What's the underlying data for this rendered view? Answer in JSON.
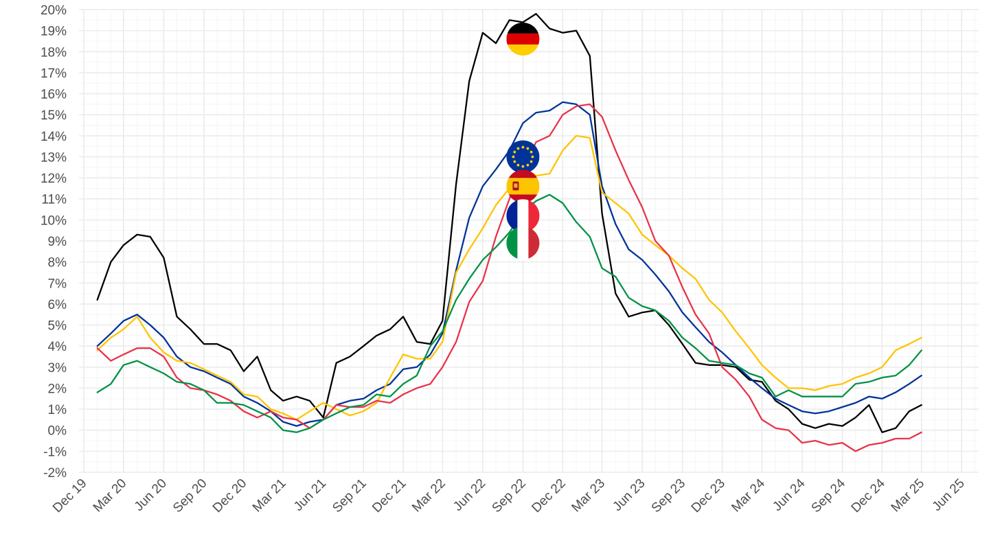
{
  "chart_data": {
    "type": "line",
    "title": "",
    "xlabel": "",
    "ylabel": "",
    "ylim": [
      -2,
      20
    ],
    "y_ticks": [
      -2,
      -1,
      0,
      1,
      2,
      3,
      4,
      5,
      6,
      7,
      8,
      9,
      10,
      11,
      12,
      13,
      14,
      15,
      16,
      17,
      18,
      19,
      20
    ],
    "y_tick_suffix": "%",
    "xlim": [
      "2019-11-20",
      "2025-07-10"
    ],
    "x_tick_dates": [
      "2019-12-01",
      "2020-03-01",
      "2020-06-01",
      "2020-09-01",
      "2020-12-01",
      "2021-03-01",
      "2021-06-01",
      "2021-09-01",
      "2021-12-01",
      "2022-03-01",
      "2022-06-01",
      "2022-09-01",
      "2022-12-01",
      "2023-03-01",
      "2023-06-01",
      "2023-09-01",
      "2023-12-01",
      "2024-03-01",
      "2024-06-01",
      "2024-09-01",
      "2024-12-01",
      "2025-03-01",
      "2025-06-01"
    ],
    "x_tick_labels": [
      "Dec 19",
      "Mar 20",
      "Jun 20",
      "Sep 20",
      "Dec 20",
      "Mar 21",
      "Jun 21",
      "Sep 21",
      "Dec 21",
      "Mar 22",
      "Jun 22",
      "Sep 22",
      "Dec 22",
      "Mar 23",
      "Jun 23",
      "Sep 23",
      "Dec 23",
      "Mar 24",
      "Jun 24",
      "Sep 24",
      "Dec 24",
      "Mar 25",
      "Jun 25"
    ],
    "grid": true,
    "legend": "flag icons on lines near Sep 22",
    "x_start": "2020-01-01",
    "x_step": "month",
    "series": [
      {
        "name": "Germany",
        "color": "#000000",
        "flag": "germany-flag-icon",
        "flag_at": "2022-09-01",
        "flag_value": 18.6,
        "values": [
          6.2,
          8.0,
          8.8,
          9.3,
          9.2,
          8.2,
          5.4,
          4.8,
          4.1,
          4.1,
          3.8,
          2.8,
          3.5,
          1.9,
          1.4,
          1.6,
          1.4,
          0.6,
          3.2,
          3.5,
          4.0,
          4.5,
          4.8,
          5.4,
          4.2,
          4.1,
          5.2,
          11.7,
          16.6,
          18.9,
          18.4,
          19.5,
          19.4,
          19.8,
          19.1,
          18.9,
          19.0,
          17.8,
          10.3,
          6.5,
          5.4,
          5.6,
          5.7,
          5.0,
          4.1,
          3.2,
          3.1,
          3.1,
          3.0,
          2.4,
          2.3,
          1.4,
          1.0,
          0.3,
          0.1,
          0.3,
          0.2,
          0.6,
          1.2,
          -0.1,
          0.1,
          0.9,
          1.2
        ]
      },
      {
        "name": "Euro area",
        "color": "#003399",
        "flag": "eu-flag-icon",
        "flag_at": "2022-09-01",
        "flag_value": 13.0,
        "values": [
          4.0,
          4.6,
          5.2,
          5.5,
          5.0,
          4.4,
          3.5,
          3.0,
          2.8,
          2.5,
          2.2,
          1.6,
          1.3,
          0.9,
          0.4,
          0.2,
          0.4,
          0.5,
          1.2,
          1.4,
          1.5,
          1.9,
          2.2,
          2.9,
          3.0,
          3.6,
          4.6,
          7.6,
          10.1,
          11.6,
          12.4,
          13.3,
          14.6,
          15.1,
          15.2,
          15.6,
          15.5,
          15.0,
          11.6,
          9.8,
          8.6,
          8.1,
          7.4,
          6.6,
          5.6,
          4.9,
          4.2,
          3.7,
          3.1,
          2.5,
          2.0,
          1.5,
          1.2,
          0.9,
          0.8,
          0.9,
          1.1,
          1.3,
          1.6,
          1.5,
          1.8,
          2.2,
          2.6
        ]
      },
      {
        "name": "Spain",
        "color": "#ffc400",
        "flag": "spain-flag-icon",
        "flag_at": "2022-09-01",
        "flag_value": 11.6,
        "values": [
          3.8,
          4.4,
          4.8,
          5.4,
          4.4,
          3.7,
          3.3,
          3.2,
          2.9,
          2.6,
          2.3,
          1.7,
          1.6,
          1.0,
          0.8,
          0.5,
          0.9,
          1.3,
          1.0,
          0.7,
          0.9,
          1.3,
          2.5,
          3.6,
          3.4,
          3.4,
          4.2,
          7.5,
          8.6,
          9.6,
          10.7,
          11.5,
          12.5,
          12.1,
          12.2,
          13.3,
          14.0,
          13.9,
          11.3,
          10.8,
          10.3,
          9.3,
          8.8,
          8.3,
          7.7,
          7.2,
          6.2,
          5.6,
          4.7,
          3.9,
          3.1,
          2.5,
          2.0,
          2.0,
          1.9,
          2.1,
          2.2,
          2.5,
          2.7,
          3.0,
          3.8,
          4.1,
          4.4
        ]
      },
      {
        "name": "France",
        "color": "#e8334a",
        "flag": "france-flag-icon",
        "flag_at": "2022-09-01",
        "flag_value": 10.2,
        "values": [
          3.9,
          3.3,
          3.6,
          3.9,
          3.9,
          3.5,
          2.5,
          2.0,
          1.9,
          1.7,
          1.4,
          0.9,
          0.6,
          0.9,
          0.6,
          0.5,
          0.1,
          0.5,
          1.2,
          1.1,
          1.1,
          1.4,
          1.3,
          1.7,
          2.0,
          2.2,
          3.0,
          4.2,
          6.1,
          7.1,
          9.2,
          11.0,
          12.4,
          13.7,
          14.0,
          15.0,
          15.4,
          15.5,
          14.9,
          13.3,
          11.9,
          10.6,
          9.0,
          8.3,
          6.8,
          5.5,
          4.6,
          3.0,
          2.4,
          1.6,
          0.5,
          0.1,
          0.0,
          -0.6,
          -0.5,
          -0.7,
          -0.6,
          -1.0,
          -0.7,
          -0.6,
          -0.4,
          -0.4,
          -0.1
        ]
      },
      {
        "name": "Italy",
        "color": "#009246",
        "flag": "italy-flag-icon",
        "flag_at": "2022-09-01",
        "flag_value": 8.9,
        "values": [
          1.8,
          2.2,
          3.1,
          3.3,
          3.0,
          2.7,
          2.3,
          2.2,
          1.9,
          1.3,
          1.3,
          1.2,
          0.9,
          0.6,
          0.0,
          -0.1,
          0.1,
          0.5,
          0.8,
          1.1,
          1.2,
          1.7,
          1.6,
          2.2,
          2.6,
          4.0,
          4.7,
          6.2,
          7.2,
          8.1,
          8.7,
          9.4,
          10.4,
          10.9,
          11.2,
          10.8,
          9.9,
          9.2,
          7.7,
          7.3,
          6.3,
          5.9,
          5.7,
          5.2,
          4.4,
          3.9,
          3.3,
          3.2,
          3.1,
          2.7,
          2.5,
          1.6,
          1.9,
          1.6,
          1.6,
          1.6,
          1.6,
          2.2,
          2.3,
          2.5,
          2.6,
          3.1,
          3.8
        ]
      }
    ]
  }
}
